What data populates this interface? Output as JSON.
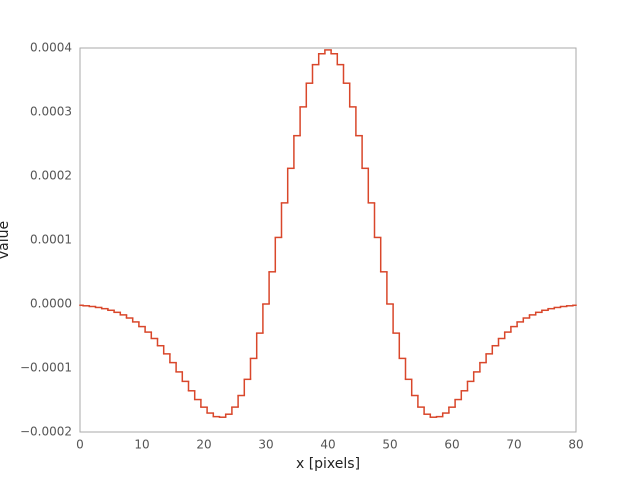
{
  "chart_data": {
    "type": "step",
    "xlabel": "x [pixels]",
    "ylabel": "value",
    "color": "#d9472b",
    "x": [
      0,
      1,
      2,
      3,
      4,
      5,
      6,
      7,
      8,
      9,
      10,
      11,
      12,
      13,
      14,
      15,
      16,
      17,
      18,
      19,
      20,
      21,
      22,
      23,
      24,
      25,
      26,
      27,
      28,
      29,
      30,
      31,
      32,
      33,
      34,
      35,
      36,
      37,
      38,
      39,
      40,
      41,
      42,
      43,
      44,
      45,
      46,
      47,
      48,
      49,
      50,
      51,
      52,
      53,
      54,
      55,
      56,
      57,
      58,
      59,
      60,
      61,
      62,
      63,
      64,
      65,
      66,
      67,
      68,
      69,
      70,
      71,
      72,
      73,
      74,
      75,
      76,
      77,
      78,
      79,
      80
    ],
    "values": [
      -2e-06,
      -2.8e-06,
      -3.9e-06,
      -5.4e-06,
      -7.3e-06,
      -9.8e-06,
      -1.3e-05,
      -1.7e-05,
      -2.19e-05,
      -2.8e-05,
      -3.53e-05,
      -4.39e-05,
      -5.39e-05,
      -6.52e-05,
      -7.79e-05,
      -9.16e-05,
      -0.0001061,
      -0.0001209,
      -0.0001356,
      -0.0001493,
      -0.0001612,
      -0.0001704,
      -0.000176,
      -0.0001769,
      -0.0001722,
      -0.0001611,
      -0.000143,
      -0.0001177,
      -8.5e-05,
      -4.55e-05,
      0,
      5.03e-05,
      0.000104,
      0.000158,
      0.000212,
      0.000263,
      0.000308,
      0.000345,
      0.000374,
      0.000391,
      0.000397,
      0.000391,
      0.000374,
      0.000345,
      0.000308,
      0.000263,
      0.000212,
      0.000158,
      0.000104,
      5.03e-05,
      0,
      -4.55e-05,
      -8.5e-05,
      -0.0001177,
      -0.000143,
      -0.0001611,
      -0.0001722,
      -0.0001769,
      -0.000176,
      -0.0001704,
      -0.0001612,
      -0.0001493,
      -0.0001356,
      -0.0001209,
      -0.0001061,
      -9.16e-05,
      -7.79e-05,
      -6.52e-05,
      -5.39e-05,
      -4.39e-05,
      -3.53e-05,
      -2.8e-05,
      -2.19e-05,
      -1.7e-05,
      -1.3e-05,
      -9.8e-06,
      -7.3e-06,
      -5.4e-06,
      -3.9e-06,
      -2.8e-06,
      -2e-06
    ],
    "xlim": [
      0,
      80
    ],
    "xticks": [
      0,
      10,
      20,
      30,
      40,
      50,
      60,
      70,
      80
    ],
    "ylim": [
      -0.0002,
      0.0004
    ],
    "yticks": [
      {
        "value": -0.0002,
        "label": "−0.0002"
      },
      {
        "value": -0.0001,
        "label": "−0.0001"
      },
      {
        "value": 0,
        "label": "0.0000"
      },
      {
        "value": 0.0001,
        "label": "0.0001"
      },
      {
        "value": 0.0002,
        "label": "0.0002"
      },
      {
        "value": 0.0003,
        "label": "0.0003"
      },
      {
        "value": 0.0004,
        "label": "0.0004"
      }
    ],
    "grid": false
  }
}
